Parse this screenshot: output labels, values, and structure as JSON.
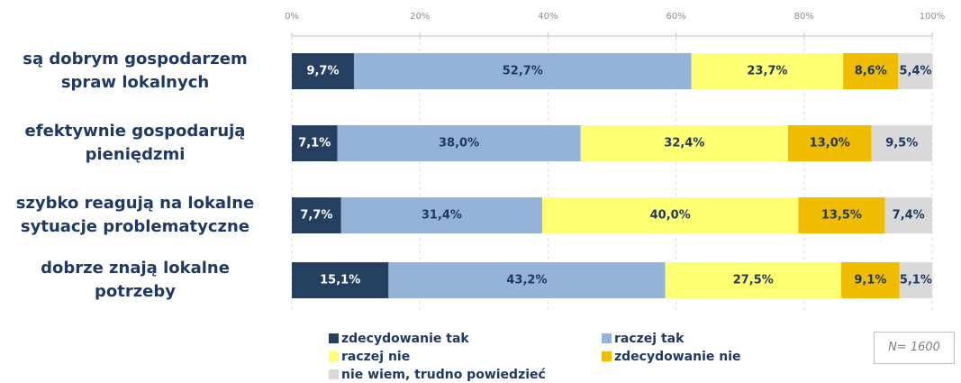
{
  "chart_data": {
    "type": "stacked_barh",
    "categories": [
      "są dobrym gospodarzem\nspraw lokalnych",
      "efektywnie gospodarują\npieniędzmi",
      "szybko reagują na lokalne\nsytuacje problematyczne",
      "dobrze znają lokalne\npotrzeby"
    ],
    "series": [
      {
        "name": "zdecydowanie tak",
        "color": "#243f60",
        "values": [
          9.7,
          7.1,
          7.7,
          15.1
        ],
        "value_labels": [
          "9,7%",
          "7,1%",
          "7,7%",
          "15,1%"
        ]
      },
      {
        "name": "raczej tak",
        "color": "#95b3d7",
        "values": [
          52.7,
          38.0,
          31.4,
          43.2
        ],
        "value_labels": [
          "52,7%",
          "38,0%",
          "31,4%",
          "43,2%"
        ]
      },
      {
        "name": "raczej nie",
        "color": "#ffff72",
        "values": [
          23.7,
          32.4,
          40.0,
          27.5
        ],
        "value_labels": [
          "23,7%",
          "32,4%",
          "40,0%",
          "27,5%"
        ]
      },
      {
        "name": "zdecydowanie nie",
        "color": "#f0bc00",
        "values": [
          8.6,
          13.0,
          13.5,
          9.1
        ],
        "value_labels": [
          "8,6%",
          "13,0%",
          "13,5%",
          "9,1%"
        ]
      },
      {
        "name": "nie wiem, trudno powiedzieć",
        "color": "#d9d9d9",
        "values": [
          5.4,
          9.5,
          7.4,
          5.1
        ],
        "value_labels": [
          "5,4%",
          "9,5%",
          "7,4%",
          "5,1%"
        ]
      }
    ],
    "xlim": [
      0,
      100
    ],
    "xticks": [
      {
        "value": 0,
        "label": "0%"
      },
      {
        "value": 20,
        "label": "20%"
      },
      {
        "value": 40,
        "label": "40%"
      },
      {
        "value": 60,
        "label": "60%"
      },
      {
        "value": 80,
        "label": "80%"
      },
      {
        "value": 100,
        "label": "100%"
      }
    ],
    "grid": true,
    "note": "N= 1600"
  }
}
